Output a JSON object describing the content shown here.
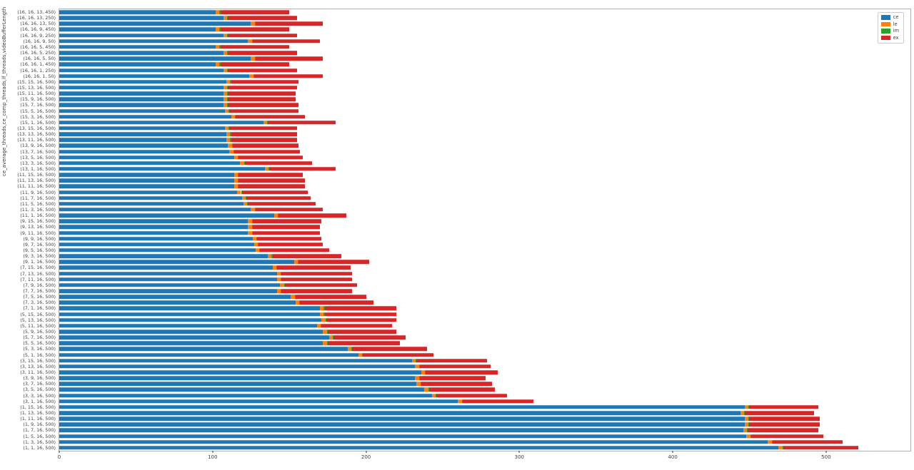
{
  "chart_data": {
    "type": "bar",
    "orientation": "horizontal",
    "stacked": true,
    "title": "",
    "xlabel": "",
    "ylabel": "ce_average_threads,ce_comp_threads,lf_threads,videoBufferLength",
    "xlim": [
      0,
      555
    ],
    "x_ticks": [
      0,
      100,
      200,
      300,
      400,
      500
    ],
    "grid": false,
    "legend_position": "upper right",
    "colors": {
      "ce": "#1f77b4",
      "le": "#ff7f0e",
      "im": "#2ca02c",
      "ex": "#d62728"
    },
    "series_names": [
      "ce",
      "le",
      "im",
      "ex"
    ],
    "legend": {
      "entries": [
        {
          "label": "ce",
          "color": "#1f77b4"
        },
        {
          "label": "le",
          "color": "#ff7f0e"
        },
        {
          "label": "im",
          "color": "#2ca02c"
        },
        {
          "label": "ex",
          "color": "#d62728"
        }
      ]
    },
    "bars": [
      {
        "label": "(16, 16, 13, 450)",
        "ce": 102,
        "le": 2.5,
        "im": 0.5,
        "ex": 45
      },
      {
        "label": "(16, 16, 13, 250)",
        "ce": 107,
        "le": 2.5,
        "im": 0.5,
        "ex": 45
      },
      {
        "label": "(16, 16, 13, 50)",
        "ce": 125,
        "le": 2.5,
        "im": 0.5,
        "ex": 44
      },
      {
        "label": "(16, 16, 9, 450)",
        "ce": 102,
        "le": 2.5,
        "im": 0.5,
        "ex": 45
      },
      {
        "label": "(16, 16, 9, 250)",
        "ce": 107,
        "le": 2.5,
        "im": 0.5,
        "ex": 45
      },
      {
        "label": "(16, 16, 9, 50)",
        "ce": 123,
        "le": 2.5,
        "im": 0.5,
        "ex": 44
      },
      {
        "label": "(16, 16, 5, 450)",
        "ce": 102,
        "le": 2.5,
        "im": 0.5,
        "ex": 45
      },
      {
        "label": "(16, 16, 5, 250)",
        "ce": 107,
        "le": 2.5,
        "im": 0.5,
        "ex": 45
      },
      {
        "label": "(16, 16, 5, 50)",
        "ce": 125,
        "le": 2.5,
        "im": 0.5,
        "ex": 44
      },
      {
        "label": "(16, 16, 1, 450)",
        "ce": 102,
        "le": 2.5,
        "im": 0.5,
        "ex": 45
      },
      {
        "label": "(16, 16, 1, 250)",
        "ce": 107,
        "le": 2.5,
        "im": 0.5,
        "ex": 45
      },
      {
        "label": "(16, 16, 1, 50)",
        "ce": 124,
        "le": 2.5,
        "im": 0.5,
        "ex": 45
      },
      {
        "label": "(15, 15, 16, 500)",
        "ce": 109,
        "le": 2.5,
        "im": 0.5,
        "ex": 44
      },
      {
        "label": "(15, 13, 16, 500)",
        "ce": 107,
        "le": 2.5,
        "im": 0.5,
        "ex": 45
      },
      {
        "label": "(15, 11, 16, 500)",
        "ce": 107,
        "le": 2.5,
        "im": 0.5,
        "ex": 44
      },
      {
        "label": "(15, 9, 16, 500)",
        "ce": 107,
        "le": 2.5,
        "im": 0.5,
        "ex": 44
      },
      {
        "label": "(15, 7, 16, 500)",
        "ce": 107,
        "le": 2.5,
        "im": 0.5,
        "ex": 46
      },
      {
        "label": "(15, 5, 16, 500)",
        "ce": 108,
        "le": 2.5,
        "im": 0.5,
        "ex": 45
      },
      {
        "label": "(15, 3, 16, 500)",
        "ce": 112,
        "le": 2.5,
        "im": 0.5,
        "ex": 45
      },
      {
        "label": "(15, 1, 16, 500)",
        "ce": 133,
        "le": 2.5,
        "im": 0.5,
        "ex": 44
      },
      {
        "label": "(13, 15, 16, 500)",
        "ce": 108,
        "le": 2.5,
        "im": 0.5,
        "ex": 44
      },
      {
        "label": "(13, 13, 16, 500)",
        "ce": 109,
        "le": 2.5,
        "im": 0.5,
        "ex": 43
      },
      {
        "label": "(13, 11, 16, 500)",
        "ce": 109,
        "le": 2.5,
        "im": 0.5,
        "ex": 43
      },
      {
        "label": "(13, 9, 16, 500)",
        "ce": 110,
        "le": 2.5,
        "im": 0.5,
        "ex": 43
      },
      {
        "label": "(13, 7, 16, 500)",
        "ce": 111,
        "le": 2.5,
        "im": 0.5,
        "ex": 43
      },
      {
        "label": "(13, 5, 16, 500)",
        "ce": 114,
        "le": 2.5,
        "im": 0.5,
        "ex": 42
      },
      {
        "label": "(13, 3, 16, 500)",
        "ce": 118,
        "le": 2.5,
        "im": 0.5,
        "ex": 44
      },
      {
        "label": "(13, 1, 16, 500)",
        "ce": 134,
        "le": 2.5,
        "im": 0.5,
        "ex": 43
      },
      {
        "label": "(11, 15, 16, 500)",
        "ce": 114,
        "le": 2.5,
        "im": 0.5,
        "ex": 42
      },
      {
        "label": "(11, 13, 16, 500)",
        "ce": 114,
        "le": 2.5,
        "im": 0.5,
        "ex": 43
      },
      {
        "label": "(11, 11, 16, 500)",
        "ce": 114,
        "le": 2.5,
        "im": 0.5,
        "ex": 43
      },
      {
        "label": "(11, 9, 16, 500)",
        "ce": 116,
        "le": 2.5,
        "im": 0.5,
        "ex": 43
      },
      {
        "label": "(11, 7, 16, 500)",
        "ce": 119,
        "le": 2.5,
        "im": 0.5,
        "ex": 42
      },
      {
        "label": "(11, 5, 16, 500)",
        "ce": 120,
        "le": 2.5,
        "im": 0.5,
        "ex": 44
      },
      {
        "label": "(11, 3, 16, 500)",
        "ce": 125,
        "le": 2.5,
        "im": 0.5,
        "ex": 44
      },
      {
        "label": "(11, 1, 16, 500)",
        "ce": 140,
        "le": 2.5,
        "im": 0.5,
        "ex": 44
      },
      {
        "label": "(9, 15, 16, 500)",
        "ce": 123,
        "le": 2.5,
        "im": 0.5,
        "ex": 45
      },
      {
        "label": "(9, 13, 16, 500)",
        "ce": 123,
        "le": 2.5,
        "im": 0.5,
        "ex": 44
      },
      {
        "label": "(9, 11, 16, 500)",
        "ce": 123,
        "le": 2.5,
        "im": 0.5,
        "ex": 44
      },
      {
        "label": "(9, 9, 16, 500)",
        "ce": 126,
        "le": 2.5,
        "im": 0.5,
        "ex": 42
      },
      {
        "label": "(9, 7, 16, 500)",
        "ce": 127,
        "le": 2.5,
        "im": 0.5,
        "ex": 42
      },
      {
        "label": "(9, 5, 16, 500)",
        "ce": 128,
        "le": 2.5,
        "im": 0.5,
        "ex": 45
      },
      {
        "label": "(9, 3, 16, 500)",
        "ce": 136,
        "le": 2.5,
        "im": 0.5,
        "ex": 45
      },
      {
        "label": "(9, 1, 16, 500)",
        "ce": 153,
        "le": 2.5,
        "im": 0.5,
        "ex": 46
      },
      {
        "label": "(7, 15, 16, 500)",
        "ce": 139,
        "le": 2.5,
        "im": 0.5,
        "ex": 48
      },
      {
        "label": "(7, 13, 16, 500)",
        "ce": 142,
        "le": 2.5,
        "im": 0.5,
        "ex": 46
      },
      {
        "label": "(7, 11, 16, 500)",
        "ce": 142,
        "le": 2.5,
        "im": 0.5,
        "ex": 46
      },
      {
        "label": "(7, 9, 16, 500)",
        "ce": 144,
        "le": 2.5,
        "im": 0.5,
        "ex": 47
      },
      {
        "label": "(7, 7, 16, 500)",
        "ce": 142,
        "le": 2.5,
        "im": 0.5,
        "ex": 46
      },
      {
        "label": "(7, 5, 16, 500)",
        "ce": 151,
        "le": 2.5,
        "im": 0.5,
        "ex": 46
      },
      {
        "label": "(7, 3, 16, 500)",
        "ce": 154,
        "le": 2.5,
        "im": 0.5,
        "ex": 48
      },
      {
        "label": "(7, 1, 16, 500)",
        "ce": 170,
        "le": 2.5,
        "im": 0.5,
        "ex": 47
      },
      {
        "label": "(5, 15, 16, 500)",
        "ce": 170,
        "le": 2.5,
        "im": 0.5,
        "ex": 47
      },
      {
        "label": "(5, 13, 16, 500)",
        "ce": 171,
        "le": 2.5,
        "im": 0.5,
        "ex": 46
      },
      {
        "label": "(5, 11, 16, 500)",
        "ce": 168,
        "le": 2.5,
        "im": 0.5,
        "ex": 46
      },
      {
        "label": "(5, 9, 16, 500)",
        "ce": 172,
        "le": 2.5,
        "im": 0.5,
        "ex": 45
      },
      {
        "label": "(5, 7, 16, 500)",
        "ce": 176,
        "le": 2.5,
        "im": 0.5,
        "ex": 47
      },
      {
        "label": "(5, 5, 16, 500)",
        "ce": 172,
        "le": 2.5,
        "im": 0.5,
        "ex": 47
      },
      {
        "label": "(5, 3, 16, 500)",
        "ce": 188,
        "le": 2.5,
        "im": 0.5,
        "ex": 49
      },
      {
        "label": "(5, 1, 16, 500)",
        "ce": 195,
        "le": 2.5,
        "im": 0.5,
        "ex": 46
      },
      {
        "label": "(3, 15, 16, 500)",
        "ce": 230,
        "le": 2.5,
        "im": 0.5,
        "ex": 46
      },
      {
        "label": "(3, 13, 16, 500)",
        "ce": 232,
        "le": 2.5,
        "im": 0.5,
        "ex": 46
      },
      {
        "label": "(3, 11, 16, 500)",
        "ce": 236,
        "le": 2.5,
        "im": 0.5,
        "ex": 47
      },
      {
        "label": "(3, 9, 16, 500)",
        "ce": 232,
        "le": 2.5,
        "im": 0.5,
        "ex": 43
      },
      {
        "label": "(3, 7, 16, 500)",
        "ce": 233,
        "le": 2.5,
        "im": 0.5,
        "ex": 46
      },
      {
        "label": "(3, 5, 16, 500)",
        "ce": 238,
        "le": 2.5,
        "im": 0.5,
        "ex": 43
      },
      {
        "label": "(3, 3, 16, 500)",
        "ce": 243,
        "le": 2.5,
        "im": 0.5,
        "ex": 46
      },
      {
        "label": "(3, 1, 16, 500)",
        "ce": 260,
        "le": 2.5,
        "im": 0.5,
        "ex": 46
      },
      {
        "label": "(1, 15, 16, 500)",
        "ce": 447,
        "le": 2.5,
        "im": 0.5,
        "ex": 45
      },
      {
        "label": "(1, 13, 16, 500)",
        "ce": 444,
        "le": 2.5,
        "im": 0.5,
        "ex": 45
      },
      {
        "label": "(1, 11, 16, 500)",
        "ce": 447,
        "le": 2.5,
        "im": 0.5,
        "ex": 46
      },
      {
        "label": "(1, 9, 16, 500)",
        "ce": 447,
        "le": 2.5,
        "im": 0.5,
        "ex": 46
      },
      {
        "label": "(1, 7, 16, 500)",
        "ce": 446,
        "le": 2.5,
        "im": 0.5,
        "ex": 46
      },
      {
        "label": "(1, 5, 16, 500)",
        "ce": 448,
        "le": 2.5,
        "im": 0.5,
        "ex": 47
      },
      {
        "label": "(1, 3, 16, 500)",
        "ce": 462,
        "le": 2.5,
        "im": 0.5,
        "ex": 46
      },
      {
        "label": "(1, 1, 16, 500)",
        "ce": 469,
        "le": 2.5,
        "im": 0.5,
        "ex": 49
      }
    ]
  }
}
